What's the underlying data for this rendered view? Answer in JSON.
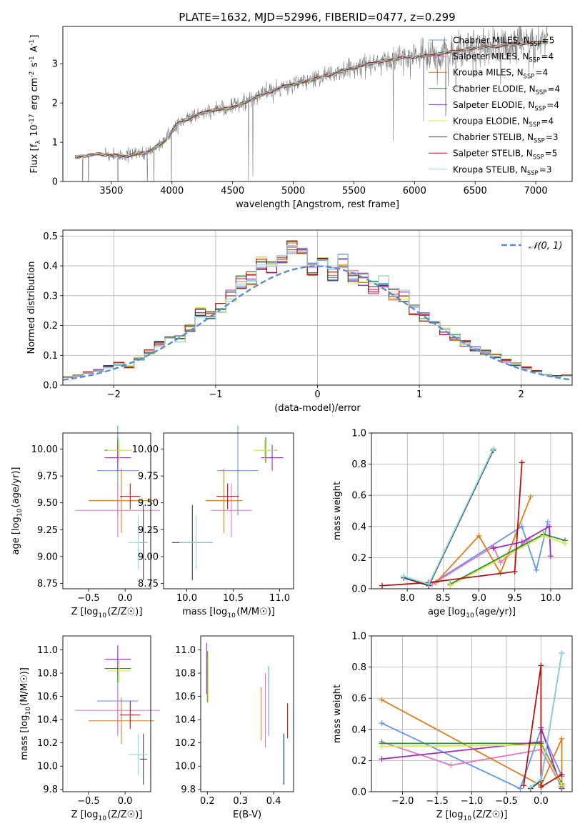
{
  "figure_title": "PLATE=1632, MJD=52996, FIBERID=0477, z=0.299",
  "models": [
    {
      "name": "Chabrier MILES",
      "nssp": "5",
      "color": "#6495ed"
    },
    {
      "name": "Salpeter MILES",
      "nssp": "4",
      "color": "#e377c2"
    },
    {
      "name": "Kroupa MILES",
      "nssp": "4",
      "color": "#e07b18"
    },
    {
      "name": "Chabrier ELODIE",
      "nssp": "4",
      "color": "#2e8b3a"
    },
    {
      "name": "Salpeter ELODIE",
      "nssp": "4",
      "color": "#9b30c0"
    },
    {
      "name": "Kroupa ELODIE",
      "nssp": "4",
      "color": "#d4ea4a"
    },
    {
      "name": "Chabrier STELIB",
      "nssp": "3",
      "color": "#404040"
    },
    {
      "name": "Salpeter STELIB",
      "nssp": "5",
      "color": "#b01515"
    },
    {
      "name": "Kroupa STELIB",
      "nssp": "3",
      "color": "#8fd8e8"
    }
  ],
  "chart_data": [
    {
      "id": "spectrum",
      "type": "line",
      "xlabel": "wavelength [Angstrom, rest frame]",
      "ylabel": "Flux [f_λ 10^-17 erg cm^-2 s^-1 A^-1]",
      "xlim": [
        3100,
        7300
      ],
      "ylim": [
        0,
        3.95
      ],
      "xticks": [
        3500,
        4000,
        4500,
        5000,
        5500,
        6000,
        6500,
        7000
      ],
      "yticks": [
        0,
        1,
        2,
        3
      ],
      "legend_position": "right",
      "data_series": {
        "name": "data",
        "color": "#808080"
      },
      "continuum_x": [
        3200,
        3400,
        3600,
        3800,
        3950,
        4050,
        4150,
        4300,
        4500,
        4700,
        4900,
        5100,
        5300,
        5500,
        5700,
        5900,
        6100,
        6300,
        6500,
        6700,
        6900,
        7100
      ],
      "continuum_y": [
        0.62,
        0.7,
        0.64,
        0.74,
        1.05,
        1.5,
        1.62,
        1.8,
        1.88,
        2.15,
        2.4,
        2.55,
        2.72,
        2.9,
        3.05,
        3.15,
        3.2,
        3.3,
        3.4,
        3.45,
        3.52,
        3.55
      ]
    },
    {
      "id": "residuals",
      "type": "line",
      "xlabel": "(data-model)/error",
      "ylabel": "Normed distribution",
      "xlim": [
        -2.5,
        2.5
      ],
      "ylim": [
        0,
        0.52
      ],
      "xticks": [
        -2,
        -1,
        0,
        1,
        2
      ],
      "yticks": [
        0.0,
        0.1,
        0.2,
        0.3,
        0.4,
        0.5
      ],
      "legend": "𝒩(0, 1)",
      "legend_position": "top-right",
      "normal_color": "#5b8bd6",
      "bin_width": 0.1,
      "histogram_centers": [
        -2.45,
        -2.35,
        -2.25,
        -2.15,
        -2.05,
        -1.95,
        -1.85,
        -1.75,
        -1.65,
        -1.55,
        -1.45,
        -1.35,
        -1.25,
        -1.15,
        -1.05,
        -0.95,
        -0.85,
        -0.75,
        -0.65,
        -0.55,
        -0.45,
        -0.35,
        -0.25,
        -0.15,
        -0.05,
        0.05,
        0.15,
        0.25,
        0.35,
        0.45,
        0.55,
        0.65,
        0.75,
        0.85,
        0.95,
        1.05,
        1.15,
        1.25,
        1.35,
        1.45,
        1.55,
        1.65,
        1.75,
        1.85,
        1.95,
        2.05,
        2.15,
        2.25,
        2.35,
        2.45
      ],
      "histogram_heights": [
        0.028,
        0.032,
        0.042,
        0.05,
        0.062,
        0.072,
        0.06,
        0.088,
        0.112,
        0.138,
        0.168,
        0.155,
        0.19,
        0.245,
        0.232,
        0.258,
        0.3,
        0.345,
        0.358,
        0.408,
        0.398,
        0.432,
        0.462,
        0.45,
        0.388,
        0.405,
        0.372,
        0.418,
        0.362,
        0.355,
        0.328,
        0.345,
        0.305,
        0.3,
        0.252,
        0.228,
        0.205,
        0.18,
        0.16,
        0.14,
        0.122,
        0.11,
        0.098,
        0.082,
        0.07,
        0.058,
        0.046,
        0.036,
        0.03,
        0.032
      ]
    },
    {
      "id": "age-vs-Z",
      "type": "scatter",
      "xlabel": "Z [log10(Z/Z☉)]",
      "ylabel": "age [log10(age/yr)]",
      "xlim": [
        -0.85,
        0.35
      ],
      "ylim": [
        8.7,
        10.15
      ],
      "xticks": [
        -0.5,
        0.0
      ],
      "yticks": [
        8.75,
        9.0,
        9.25,
        9.5,
        9.75,
        10.0
      ],
      "points": [
        {
          "x": -0.1,
          "y": 9.8,
          "xerr": 0.28,
          "yerr": 0.42
        },
        {
          "x": -0.1,
          "y": 9.43,
          "xerr": 0.58,
          "yerr": 0.25
        },
        {
          "x": -0.05,
          "y": 9.52,
          "xerr": 0.45,
          "yerr": 0.3
        },
        {
          "x": -0.1,
          "y": 9.99,
          "xerr": 0.18,
          "yerr": 0.12
        },
        {
          "x": -0.1,
          "y": 9.92,
          "xerr": 0.18,
          "yerr": 0.12
        },
        {
          "x": -0.08,
          "y": 9.99,
          "xerr": 0.16,
          "yerr": 0.1
        },
        {
          "x": 0.25,
          "y": 9.13,
          "xerr": 0.05,
          "yerr": 0.35
        },
        {
          "x": 0.07,
          "y": 9.56,
          "xerr": 0.14,
          "yerr": 0.12
        },
        {
          "x": 0.18,
          "y": 9.13,
          "xerr": 0.13,
          "yerr": 0.25
        }
      ]
    },
    {
      "id": "age-vs-mass",
      "type": "scatter",
      "xlabel": "mass [log10(M/M☉)]",
      "ylabel": "",
      "xlim": [
        9.75,
        11.15
      ],
      "ylim": [
        8.7,
        10.15
      ],
      "xticks": [
        10.0,
        10.5,
        11.0
      ],
      "yticks": [
        8.75,
        9.0,
        9.25,
        9.5,
        9.75,
        10.0
      ],
      "points": [
        {
          "x": 10.55,
          "y": 9.8,
          "xerr": 0.22,
          "yerr": 0.42
        },
        {
          "x": 10.48,
          "y": 9.43,
          "xerr": 0.22,
          "yerr": 0.25
        },
        {
          "x": 10.4,
          "y": 9.52,
          "xerr": 0.2,
          "yerr": 0.3
        },
        {
          "x": 10.85,
          "y": 9.99,
          "xerr": 0.12,
          "yerr": 0.12
        },
        {
          "x": 10.92,
          "y": 9.92,
          "xerr": 0.12,
          "yerr": 0.12
        },
        {
          "x": 10.84,
          "y": 9.99,
          "xerr": 0.12,
          "yerr": 0.1
        },
        {
          "x": 10.06,
          "y": 9.13,
          "xerr": 0.22,
          "yerr": 0.35
        },
        {
          "x": 10.44,
          "y": 9.56,
          "xerr": 0.12,
          "yerr": 0.12
        },
        {
          "x": 10.1,
          "y": 9.13,
          "xerr": 0.18,
          "yerr": 0.25
        }
      ]
    },
    {
      "id": "massweight-vs-age",
      "type": "line",
      "xlabel": "age [log10(age/yr)]",
      "ylabel": "mass weight",
      "xlim": [
        7.5,
        10.3
      ],
      "ylim": [
        0,
        1.0
      ],
      "xticks": [
        8.0,
        8.5,
        9.0,
        9.5,
        10.0
      ],
      "yticks": [
        0.0,
        0.2,
        0.4,
        0.6,
        0.8,
        1.0
      ],
      "series": [
        {
          "x": [
            7.95,
            8.3,
            9.6,
            9.8,
            9.96
          ],
          "y": [
            0.08,
            0.02,
            0.4,
            0.12,
            0.43
          ]
        },
        {
          "x": [
            8.35,
            9.2,
            9.3,
            9.7
          ],
          "y": [
            0.03,
            0.27,
            0.17,
            0.32
          ]
        },
        {
          "x": [
            8.4,
            9.0,
            9.3,
            9.72
          ],
          "y": [
            0.04,
            0.34,
            0.1,
            0.59
          ]
        },
        {
          "x": [
            8.6,
            9.9,
            10.2
          ],
          "y": [
            0.03,
            0.35,
            0.31
          ]
        },
        {
          "x": [
            9.2,
            9.6,
            9.98,
            10.0
          ],
          "y": [
            0.26,
            0.3,
            0.4,
            0.21
          ]
        },
        {
          "x": [
            8.6,
            9.9,
            10.2
          ],
          "y": [
            0.02,
            0.34,
            0.29
          ]
        },
        {
          "x": [
            7.95,
            8.3,
            9.2
          ],
          "y": [
            0.07,
            0.02,
            0.89
          ]
        },
        {
          "x": [
            7.65,
            8.3,
            9.5,
            9.6
          ],
          "y": [
            0.02,
            0.04,
            0.11,
            0.81
          ]
        },
        {
          "x": [
            7.95,
            8.3,
            9.2
          ],
          "y": [
            0.08,
            0.03,
            0.9
          ]
        }
      ]
    },
    {
      "id": "mass-vs-Z",
      "type": "scatter",
      "xlabel": "Z [log10(Z/Z☉)]",
      "ylabel": "mass [log10(M/M☉)]",
      "xlim": [
        -0.85,
        0.35
      ],
      "ylim": [
        9.78,
        11.12
      ],
      "xticks": [
        -0.5,
        0.0
      ],
      "yticks": [
        9.8,
        10.0,
        10.2,
        10.4,
        10.6,
        10.8,
        11.0
      ],
      "points": [
        {
          "x": -0.1,
          "y": 10.56,
          "xerr": 0.28,
          "yerr": 0.3
        },
        {
          "x": -0.1,
          "y": 10.48,
          "xerr": 0.58,
          "yerr": 0.2
        },
        {
          "x": -0.05,
          "y": 10.39,
          "xerr": 0.45,
          "yerr": 0.2
        },
        {
          "x": -0.1,
          "y": 10.84,
          "xerr": 0.18,
          "yerr": 0.12
        },
        {
          "x": -0.1,
          "y": 10.92,
          "xerr": 0.18,
          "yerr": 0.12
        },
        {
          "x": -0.08,
          "y": 10.82,
          "xerr": 0.16,
          "yerr": 0.1
        },
        {
          "x": 0.25,
          "y": 10.06,
          "xerr": 0.05,
          "yerr": 0.22
        },
        {
          "x": 0.07,
          "y": 10.44,
          "xerr": 0.14,
          "yerr": 0.12
        },
        {
          "x": 0.18,
          "y": 10.1,
          "xerr": 0.13,
          "yerr": 0.18
        }
      ]
    },
    {
      "id": "mass-vs-EBV",
      "type": "scatter",
      "xlabel": "E(B-V)",
      "ylabel": "",
      "xlim": [
        0.18,
        0.46
      ],
      "ylim": [
        9.78,
        11.12
      ],
      "xticks": [
        0.2,
        0.3,
        0.4
      ],
      "yticks": [
        9.8,
        10.0,
        10.2,
        10.4,
        10.6,
        10.8,
        11.0
      ],
      "points": [
        {
          "x": 0.385,
          "y": 10.56,
          "xerr": 0,
          "yerr": 0.3
        },
        {
          "x": 0.375,
          "y": 10.48,
          "xerr": 0,
          "yerr": 0.32
        },
        {
          "x": 0.362,
          "y": 10.45,
          "xerr": 0,
          "yerr": 0.23
        },
        {
          "x": 0.2,
          "y": 10.77,
          "xerr": 0,
          "yerr": 0.22
        },
        {
          "x": 0.198,
          "y": 10.84,
          "xerr": 0,
          "yerr": 0.22
        },
        {
          "x": 0.202,
          "y": 10.76,
          "xerr": 0,
          "yerr": 0.22
        },
        {
          "x": 0.43,
          "y": 10.06,
          "xerr": 0,
          "yerr": 0.22
        },
        {
          "x": 0.442,
          "y": 10.39,
          "xerr": 0,
          "yerr": 0.15
        },
        {
          "x": 0.432,
          "y": 10.06,
          "xerr": 0,
          "yerr": 0.22
        }
      ]
    },
    {
      "id": "massweight-vs-Z",
      "type": "line",
      "xlabel": "Z [log10(Z/Z☉)]",
      "ylabel": "mass weight",
      "xlim": [
        -2.45,
        0.45
      ],
      "ylim": [
        0,
        1.0
      ],
      "xticks": [
        -2.0,
        -1.5,
        -1.0,
        -0.5,
        0.0
      ],
      "yticks": [
        0.0,
        0.2,
        0.4,
        0.6,
        0.8,
        1.0
      ],
      "series": [
        {
          "x": [
            -2.3,
            -0.3,
            0.0,
            0.3
          ],
          "y": [
            0.44,
            0.02,
            0.4,
            0.1
          ]
        },
        {
          "x": [
            -2.3,
            -1.3,
            0.0,
            0.3
          ],
          "y": [
            0.32,
            0.17,
            0.27,
            0.03
          ]
        },
        {
          "x": [
            -2.3,
            0.0,
            0.3,
            0.3
          ],
          "y": [
            0.59,
            0.04,
            0.34,
            0.03
          ]
        },
        {
          "x": [
            -2.3,
            0.0,
            0.3,
            0.3
          ],
          "y": [
            0.31,
            0.31,
            0.05,
            0.03
          ]
        },
        {
          "x": [
            -2.3,
            0.0,
            0.0,
            0.3
          ],
          "y": [
            0.21,
            0.32,
            0.41,
            0.02
          ]
        },
        {
          "x": [
            -2.3,
            0.0,
            0.3,
            0.3
          ],
          "y": [
            0.29,
            0.3,
            0.04,
            0.04
          ]
        },
        {
          "x": [
            -0.15,
            0.0,
            0.3
          ],
          "y": [
            0.02,
            0.07,
            0.89
          ]
        },
        {
          "x": [
            -0.25,
            0.0,
            0.0,
            0.3
          ],
          "y": [
            0.04,
            0.81,
            0.03,
            0.11
          ]
        },
        {
          "x": [
            -0.15,
            0.0,
            0.3
          ],
          "y": [
            0.03,
            0.08,
            0.89
          ]
        }
      ]
    }
  ]
}
